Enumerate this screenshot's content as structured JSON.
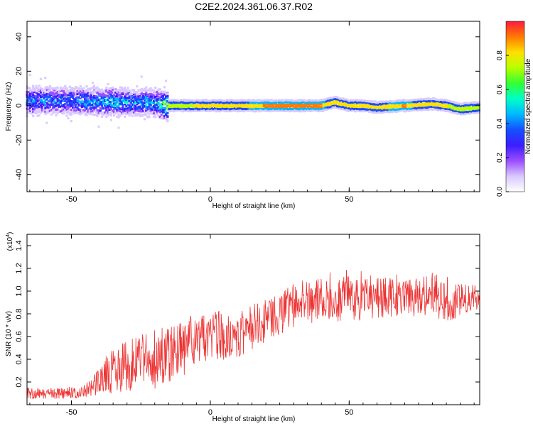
{
  "title": "C2E2.2024.361.06.37.R02",
  "colors": {
    "line": "#ee3333",
    "colormap": [
      "#ffffff",
      "#d9c8ff",
      "#9a4dff",
      "#3a1dff",
      "#1550ff",
      "#00b8ff",
      "#00ffc8",
      "#33ff33",
      "#b8ff00",
      "#ffe000",
      "#ff7a00",
      "#ff1a40"
    ]
  },
  "chart_data": [
    {
      "type": "heatmap",
      "xlabel": "Height of straight line (km)",
      "ylabel": "Frequency (Hz)",
      "xlim": [
        -66,
        97
      ],
      "ylim": [
        -50,
        49
      ],
      "x_ticks": [
        -50,
        0,
        50
      ],
      "y_ticks": [
        -40,
        -20,
        0,
        20,
        40
      ],
      "colorbar": {
        "label": "Normalized spectral amplitude",
        "range": [
          0,
          1
        ],
        "ticks": [
          "0.0",
          "0.2",
          "0.4",
          "0.6",
          "0.8"
        ],
        "tick_values": [
          0,
          0.2,
          0.4,
          0.6,
          0.8
        ]
      },
      "ridge": {
        "x": [
          -66,
          -50,
          -35,
          -20,
          -15,
          -5,
          0,
          10,
          20,
          30,
          40,
          45,
          50,
          55,
          60,
          70,
          80,
          85,
          90,
          97
        ],
        "center_freq": [
          3,
          3,
          2,
          2,
          0,
          0,
          0,
          0,
          0,
          0,
          0,
          2,
          0,
          0,
          -1,
          0,
          1,
          0,
          -2,
          -1
        ],
        "peak_amplitude": [
          0.45,
          0.45,
          0.55,
          0.5,
          0.8,
          0.85,
          0.9,
          0.9,
          0.95,
          0.95,
          0.95,
          0.85,
          0.9,
          0.85,
          0.9,
          0.95,
          0.85,
          0.85,
          0.8,
          0.75
        ]
      }
    },
    {
      "type": "line",
      "xlabel": "Height of straight line (km)",
      "ylabel": "SNR (10 * v/v)",
      "multiplier": "(x10",
      "multiplier_exp": "4",
      "xlim": [
        -66,
        97
      ],
      "ylim": [
        0,
        1.5
      ],
      "x_ticks": [
        -50,
        0,
        50
      ],
      "y_ticks": [
        0.2,
        0.4,
        0.6,
        0.8,
        1.0,
        1.2,
        1.4
      ],
      "y_tick_labels": [
        "0.2",
        "0.4",
        "0.6",
        "0.8",
        "1.0",
        "1.2",
        "1.4"
      ],
      "series": [
        {
          "x": [
            -66,
            -55,
            -45,
            -40,
            -35,
            -25,
            -20,
            -15,
            -10,
            -5,
            0,
            5,
            10,
            15,
            20,
            25,
            30,
            35,
            40,
            45,
            50,
            55,
            60,
            65,
            70,
            75,
            80,
            85,
            90,
            97
          ],
          "values": [
            0.1,
            0.1,
            0.11,
            0.2,
            0.3,
            0.38,
            0.4,
            0.45,
            0.5,
            0.55,
            0.62,
            0.6,
            0.62,
            0.68,
            0.75,
            0.8,
            0.88,
            0.9,
            0.92,
            0.93,
            0.94,
            0.93,
            0.95,
            0.95,
            0.92,
            0.95,
            0.98,
            0.9,
            0.92,
            0.96
          ],
          "spread": [
            0.05,
            0.05,
            0.06,
            0.12,
            0.2,
            0.25,
            0.26,
            0.25,
            0.25,
            0.22,
            0.22,
            0.22,
            0.2,
            0.2,
            0.2,
            0.18,
            0.2,
            0.2,
            0.2,
            0.2,
            0.2,
            0.2,
            0.2,
            0.18,
            0.18,
            0.18,
            0.2,
            0.18,
            0.15,
            0.12
          ]
        }
      ]
    }
  ]
}
